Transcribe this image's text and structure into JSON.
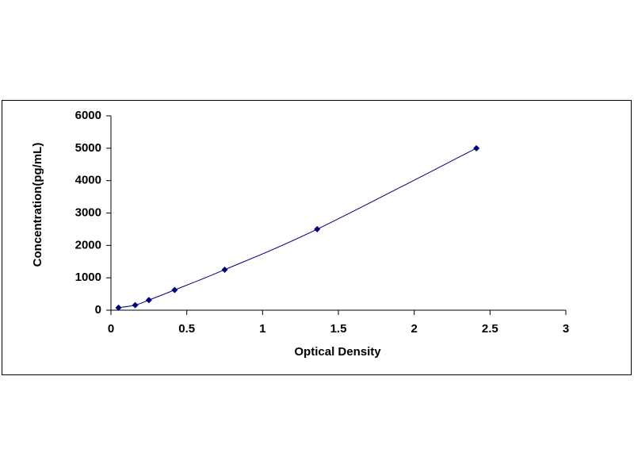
{
  "chart_data": {
    "type": "scatter",
    "xlabel": "Optical Density",
    "ylabel": "Concentration(pg/mL)",
    "x": [
      0.05,
      0.16,
      0.25,
      0.42,
      0.75,
      1.36,
      2.41
    ],
    "values": [
      78,
      156,
      312,
      625,
      1250,
      2500,
      5000
    ],
    "color": "#000080",
    "marker": "diamond",
    "line": "smooth",
    "grid": false,
    "xlim": [
      0,
      3
    ],
    "xticks": [
      0,
      0.5,
      1,
      1.5,
      2,
      2.5,
      3
    ],
    "ylim": [
      0,
      6000
    ],
    "yticks": [
      0,
      1000,
      2000,
      3000,
      4000,
      5000,
      6000
    ]
  }
}
